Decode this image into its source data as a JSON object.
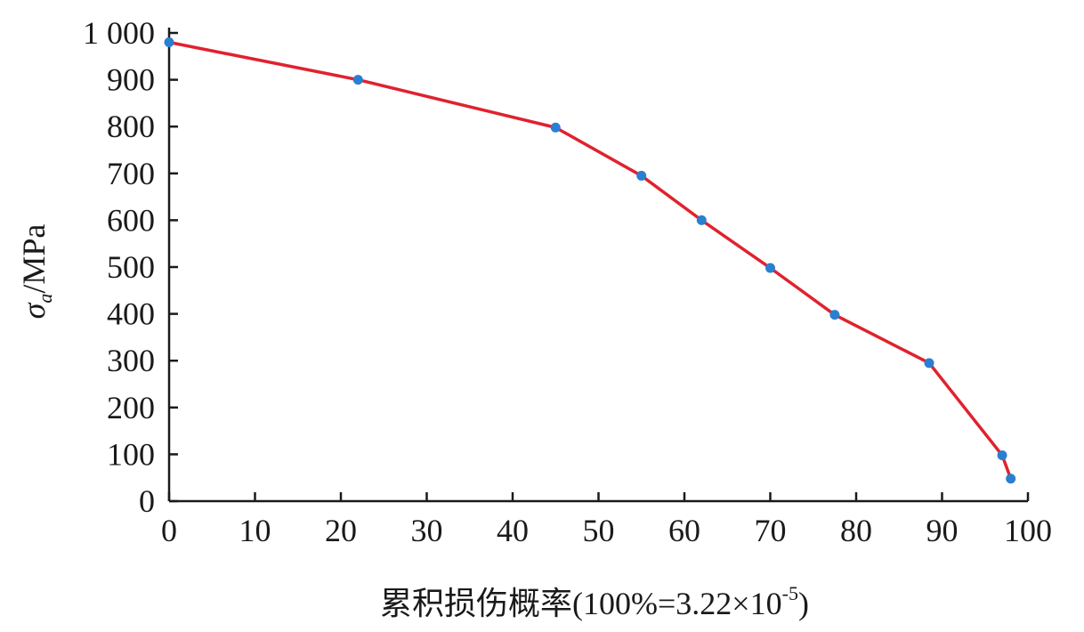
{
  "chart_data": {
    "type": "line",
    "xlabel": "累积损伤概率(100%=3.22×10",
    "xlabel_sup": "-5",
    "xlabel_close": ")",
    "ylabel_symbol": "σ",
    "ylabel_sub": "a",
    "ylabel_unit": "/MPa",
    "xlim": [
      0,
      100
    ],
    "ylim": [
      0,
      1000
    ],
    "x_ticks": [
      0,
      10,
      20,
      30,
      40,
      50,
      60,
      70,
      80,
      90,
      100
    ],
    "x_tick_labels": [
      "0",
      "10",
      "20",
      "30",
      "40",
      "50",
      "60",
      "70",
      "80",
      "90",
      "100"
    ],
    "y_ticks": [
      0,
      100,
      200,
      300,
      400,
      500,
      600,
      700,
      800,
      900,
      1000
    ],
    "y_tick_labels": [
      "0",
      "100",
      "200",
      "300",
      "400",
      "500",
      "600",
      "700",
      "800",
      "900",
      "1 000"
    ],
    "grid": false,
    "series": [
      {
        "x": [
          0,
          22,
          45,
          55,
          62,
          70,
          77.5,
          88.5,
          97,
          98
        ],
        "y": [
          980,
          900,
          798,
          695,
          600,
          498,
          398,
          295,
          98,
          48
        ],
        "line_color": "#e0222e",
        "marker_color": "#2a7fd0"
      }
    ]
  }
}
